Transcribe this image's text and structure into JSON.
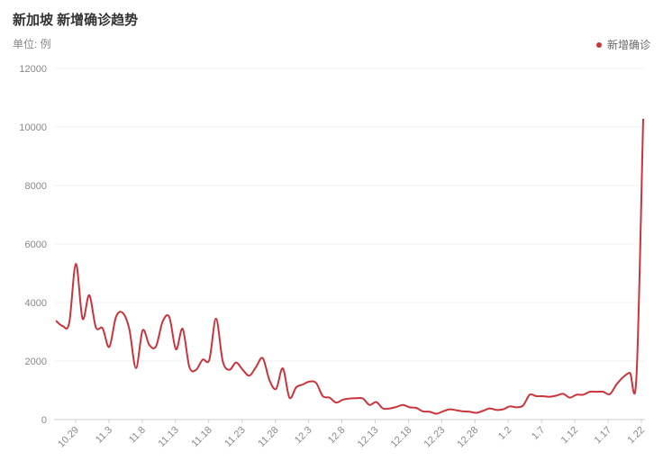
{
  "page": {
    "title": "新加坡 新增确诊趋势",
    "unit": "单位: 例",
    "legend_label": "新增确诊"
  },
  "colors": {
    "series": "#c9353b",
    "grid": "#f0f0f0",
    "axis": "#cfcfcf",
    "text": "#888888"
  },
  "chart_data": {
    "type": "line",
    "title": "新加坡 新增确诊趋势",
    "ylabel": "单位: 例",
    "ylim": [
      0,
      12000
    ],
    "yticks": [
      0,
      2000,
      4000,
      6000,
      8000,
      10000,
      12000
    ],
    "grid": true,
    "legend_position": "top-right",
    "x_tick_labels": [
      "10.29",
      "11.3",
      "11.8",
      "11.13",
      "11.18",
      "11.23",
      "11.28",
      "12.3",
      "12.8",
      "12.13",
      "12.18",
      "12.23",
      "12.28",
      "1.2",
      "1.7",
      "1.12",
      "1.17",
      "1.22"
    ],
    "series": [
      {
        "name": "新增确诊",
        "values": [
          3380,
          3200,
          3300,
          5320,
          3450,
          4250,
          3150,
          3120,
          2480,
          3500,
          3650,
          3100,
          1760,
          3050,
          2550,
          2500,
          3350,
          3500,
          2400,
          3100,
          1800,
          1700,
          2050,
          2050,
          3450,
          2000,
          1700,
          1950,
          1700,
          1500,
          1800,
          2100,
          1350,
          1050,
          1750,
          750,
          1100,
          1200,
          1300,
          1250,
          800,
          750,
          580,
          680,
          720,
          730,
          720,
          500,
          600,
          380,
          380,
          430,
          500,
          420,
          400,
          280,
          270,
          200,
          280,
          350,
          320,
          280,
          270,
          230,
          300,
          380,
          330,
          350,
          450,
          420,
          480,
          850,
          800,
          800,
          780,
          820,
          880,
          750,
          850,
          850,
          950,
          950,
          950,
          870,
          1200,
          1450,
          1600,
          1500,
          10280
        ]
      }
    ]
  }
}
